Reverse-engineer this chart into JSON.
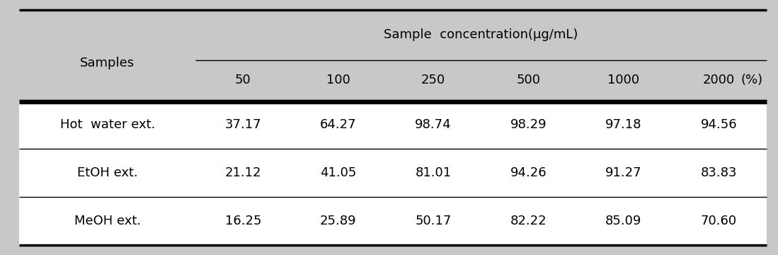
{
  "header_main": "Sample  concentration(μg/mL)",
  "header_unit": "(%)",
  "col_samples_label": "Samples",
  "concentrations": [
    "50",
    "100",
    "250",
    "500",
    "1000",
    "2000"
  ],
  "rows": [
    {
      "name": "Hot  water ext.",
      "values": [
        "37.17",
        "64.27",
        "98.74",
        "98.29",
        "97.18",
        "94.56"
      ]
    },
    {
      "name": "EtOH ext.",
      "values": [
        "21.12",
        "41.05",
        "81.01",
        "94.26",
        "91.27",
        "83.83"
      ]
    },
    {
      "name": "MeOH ext.",
      "values": [
        "16.25",
        "25.89",
        "50.17",
        "82.22",
        "85.09",
        "70.60"
      ]
    }
  ],
  "header_bg": "#c8c8c8",
  "body_bg": "#ffffff",
  "border_color": "#000000",
  "text_color": "#000000",
  "font_size": 13,
  "header_font_size": 13,
  "fig_bg": "#c8c8c8",
  "col_widths_rel": [
    1.85,
    1.0,
    1.0,
    1.0,
    1.0,
    1.0,
    1.0
  ]
}
